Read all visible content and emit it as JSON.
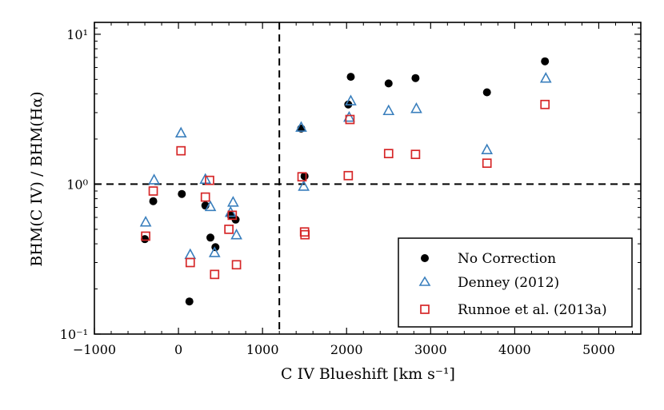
{
  "chart_data": {
    "type": "scatter",
    "xlabel": "C IV Blueshift [km s⁻¹]",
    "ylabel": "BHM(C IV) / BHM(Hα)",
    "xlim": [
      -1000,
      5500
    ],
    "ylim": [
      0.1,
      12
    ],
    "yscale": "log",
    "x_ticks": [
      -1000,
      0,
      1000,
      2000,
      3000,
      4000,
      5000
    ],
    "x_tick_labels": [
      "−1000",
      "0",
      "1000",
      "2000",
      "3000",
      "4000",
      "5000"
    ],
    "y_ticks": [
      0.1,
      1,
      10
    ],
    "y_tick_labels": [
      "10⁻¹",
      "10⁰",
      "10¹"
    ],
    "reference_lines": {
      "vertical_x": 1200,
      "horizontal_y": 1.0
    },
    "legend_position": "bottom-right",
    "series": [
      {
        "name": "No Correction",
        "marker": "filled-circle",
        "color": "#000000",
        "x": [
          -400,
          -300,
          40,
          130,
          320,
          380,
          440,
          620,
          680,
          1460,
          1500,
          2020,
          2050,
          2500,
          2820,
          3670,
          4360
        ],
        "y": [
          0.43,
          0.77,
          0.86,
          0.165,
          0.72,
          0.44,
          0.38,
          0.62,
          0.58,
          2.35,
          1.13,
          3.4,
          5.2,
          4.7,
          5.1,
          4.1,
          6.6
        ]
      },
      {
        "name": "Denney (2012)",
        "marker": "open-triangle",
        "color": "#3a7fbd",
        "x": [
          -390,
          -290,
          30,
          140,
          320,
          380,
          430,
          620,
          650,
          690,
          1460,
          1490,
          2030,
          2050,
          2500,
          2830,
          3670,
          4370
        ],
        "y": [
          0.56,
          1.07,
          2.2,
          0.34,
          1.08,
          0.71,
          0.35,
          0.65,
          0.76,
          0.46,
          2.4,
          0.97,
          2.8,
          3.6,
          3.1,
          3.2,
          1.7,
          5.1
        ]
      },
      {
        "name": "Runnoe et al. (2013a)",
        "marker": "open-square",
        "color": "#d62728",
        "x": [
          -390,
          -300,
          30,
          140,
          320,
          370,
          430,
          600,
          640,
          690,
          1470,
          1500,
          1505,
          2020,
          2040,
          2500,
          2820,
          3670,
          4360
        ],
        "y": [
          0.45,
          0.9,
          1.67,
          0.3,
          0.82,
          1.06,
          0.25,
          0.5,
          0.62,
          0.29,
          1.12,
          0.48,
          0.46,
          1.14,
          2.7,
          1.6,
          1.58,
          1.38,
          3.4
        ]
      }
    ]
  }
}
